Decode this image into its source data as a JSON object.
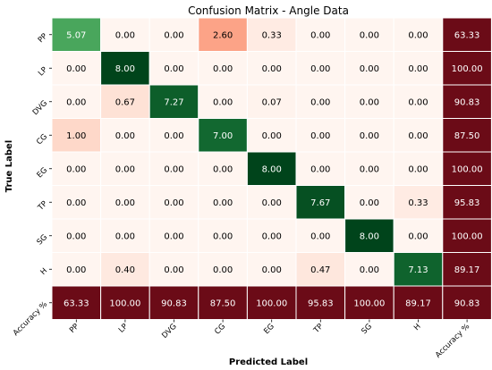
{
  "chart_data": {
    "type": "heatmap",
    "title": "Confusion Matrix - Angle Data",
    "xlabel": "Predicted Label",
    "ylabel": "True Label",
    "row_labels": [
      "PP",
      "LP",
      "DVG",
      "CG",
      "EG",
      "TP",
      "SG",
      "H",
      "Accuracy %"
    ],
    "col_labels": [
      "PP",
      "LP",
      "DVG",
      "CG",
      "EG",
      "TP",
      "SG",
      "H",
      "Accuracy %"
    ],
    "values": [
      [
        "5.07",
        "0.00",
        "0.00",
        "2.60",
        "0.33",
        "0.00",
        "0.00",
        "0.00",
        "63.33"
      ],
      [
        "0.00",
        "8.00",
        "0.00",
        "0.00",
        "0.00",
        "0.00",
        "0.00",
        "0.00",
        "100.00"
      ],
      [
        "0.00",
        "0.67",
        "7.27",
        "0.00",
        "0.07",
        "0.00",
        "0.00",
        "0.00",
        "90.83"
      ],
      [
        "1.00",
        "0.00",
        "0.00",
        "7.00",
        "0.00",
        "0.00",
        "0.00",
        "0.00",
        "87.50"
      ],
      [
        "0.00",
        "0.00",
        "0.00",
        "0.00",
        "8.00",
        "0.00",
        "0.00",
        "0.00",
        "100.00"
      ],
      [
        "0.00",
        "0.00",
        "0.00",
        "0.00",
        "0.00",
        "7.67",
        "0.00",
        "0.33",
        "95.83"
      ],
      [
        "0.00",
        "0.00",
        "0.00",
        "0.00",
        "0.00",
        "0.00",
        "8.00",
        "0.00",
        "100.00"
      ],
      [
        "0.00",
        "0.40",
        "0.00",
        "0.00",
        "0.00",
        "0.47",
        "0.00",
        "7.13",
        "89.17"
      ],
      [
        "63.33",
        "100.00",
        "90.83",
        "87.50",
        "100.00",
        "95.83",
        "100.00",
        "89.17",
        "90.83"
      ]
    ],
    "colormap": {
      "diagonal": "Greens",
      "off_diagonal": "Reds",
      "accuracy_cells": "#6b0b17",
      "max": 8
    },
    "grid_lines": "#ffffff"
  }
}
